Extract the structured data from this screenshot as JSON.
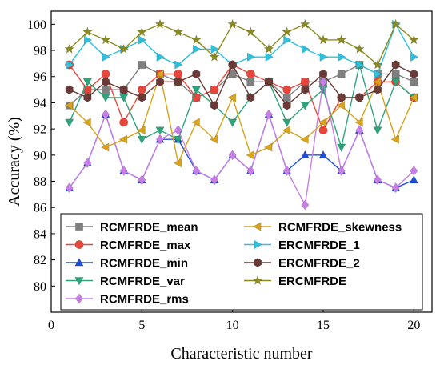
{
  "chart_data": {
    "type": "line",
    "xlabel": "Characteristic number",
    "ylabel": "Accuracy (%)",
    "xlim": [
      0,
      21
    ],
    "ylim": [
      78,
      101
    ],
    "xticks": [
      0,
      5,
      10,
      15,
      20
    ],
    "yticks": [
      80,
      82,
      84,
      86,
      88,
      90,
      92,
      94,
      96,
      98,
      100
    ],
    "legend_position": "bottom-left",
    "grid": false,
    "x": [
      1,
      2,
      3,
      4,
      5,
      6,
      7,
      8,
      9,
      10,
      11,
      12,
      13,
      14,
      15,
      16,
      17,
      18,
      19,
      20
    ],
    "series": [
      {
        "name": "RCMFRDE_mean",
        "color": "#808080",
        "marker": "square",
        "values": [
          93.8,
          95.0,
          95.0,
          95.0,
          96.9,
          96.2,
          95.6,
          94.4,
          95.0,
          96.2,
          95.6,
          95.6,
          94.4,
          95.6,
          95.6,
          96.2,
          96.9,
          96.2,
          96.2,
          95.6
        ]
      },
      {
        "name": "RCMFRDE_max",
        "color": "#e8463a",
        "marker": "circle",
        "values": [
          96.9,
          95.0,
          96.2,
          92.5,
          95.0,
          96.2,
          96.2,
          94.4,
          95.0,
          96.9,
          96.2,
          95.6,
          95.0,
          95.6,
          91.9,
          94.4,
          94.4,
          95.6,
          95.6,
          94.4
        ]
      },
      {
        "name": "RCMFRDE_min",
        "color": "#1f4fd8",
        "marker": "triangle-up",
        "values": [
          87.5,
          89.4,
          93.1,
          88.8,
          88.1,
          91.2,
          91.2,
          88.8,
          88.1,
          90.0,
          88.8,
          93.1,
          88.8,
          90.0,
          90.0,
          88.8,
          91.9,
          88.1,
          87.5,
          88.1
        ]
      },
      {
        "name": "RCMFRDE_var",
        "color": "#2ea47a",
        "marker": "triangle-down",
        "values": [
          92.5,
          95.6,
          94.4,
          94.4,
          91.2,
          91.9,
          91.2,
          95.0,
          93.8,
          92.5,
          94.4,
          95.6,
          92.5,
          93.8,
          95.0,
          90.6,
          96.9,
          91.9,
          95.6,
          94.4
        ]
      },
      {
        "name": "RCMFRDE_rms",
        "color": "#c77ee6",
        "marker": "diamond",
        "values": [
          87.5,
          89.4,
          93.1,
          88.8,
          88.1,
          91.2,
          91.9,
          88.8,
          88.1,
          90.0,
          88.8,
          93.1,
          88.8,
          86.2,
          95.6,
          88.8,
          91.9,
          88.1,
          87.5,
          88.8
        ]
      },
      {
        "name": "RCMFRDE_skewness",
        "color": "#d8a21a",
        "marker": "triangle-left",
        "values": [
          93.8,
          92.5,
          90.6,
          91.2,
          91.9,
          96.2,
          89.4,
          92.5,
          91.2,
          94.4,
          90.0,
          90.6,
          91.9,
          91.2,
          92.5,
          93.8,
          92.5,
          95.6,
          91.2,
          94.4
        ]
      },
      {
        "name": "ERCMFRDE_1",
        "color": "#2fc0dd",
        "marker": "triangle-right",
        "values": [
          96.9,
          98.8,
          97.5,
          98.1,
          98.8,
          97.5,
          96.9,
          98.1,
          98.1,
          96.9,
          97.5,
          97.5,
          98.8,
          98.1,
          97.5,
          97.5,
          96.9,
          96.2,
          100.0,
          97.5
        ]
      },
      {
        "name": "ERCMFRDE_2",
        "color": "#6b3a36",
        "marker": "hexagon",
        "values": [
          95.0,
          94.4,
          95.6,
          95.0,
          94.4,
          95.6,
          95.6,
          96.2,
          93.8,
          96.9,
          94.4,
          95.6,
          93.8,
          95.0,
          96.2,
          94.4,
          94.4,
          95.0,
          96.9,
          96.2
        ]
      },
      {
        "name": "ERCMFRDE",
        "color": "#8a8a1e",
        "marker": "star",
        "values": [
          98.1,
          99.4,
          98.8,
          98.1,
          99.4,
          100.0,
          99.4,
          98.8,
          97.5,
          100.0,
          99.4,
          98.1,
          99.4,
          100.0,
          98.8,
          98.8,
          98.1,
          96.9,
          100.0,
          98.8
        ]
      }
    ]
  }
}
